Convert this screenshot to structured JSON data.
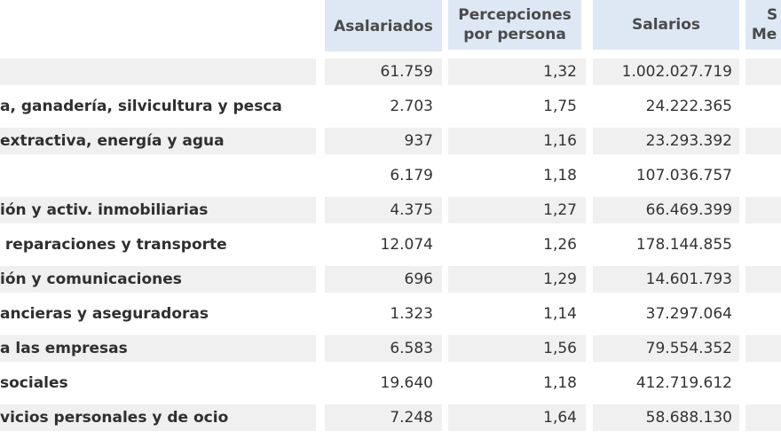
{
  "headers": {
    "asalariados": "Asalariados",
    "percepciones_line1": "Percepciones",
    "percepciones_line2": "por persona",
    "salarios": "Salarios",
    "medio_line1": "S",
    "medio_line2": "Me"
  },
  "rows": [
    {
      "label": "",
      "asalariados": "61.759",
      "percepciones": "1,32",
      "salarios": "1.002.027.719"
    },
    {
      "label": "a, ganadería, silvicultura y pesca",
      "asalariados": "2.703",
      "percepciones": "1,75",
      "salarios": "24.222.365"
    },
    {
      "label": "extractiva, energía y agua",
      "asalariados": "937",
      "percepciones": "1,16",
      "salarios": "23.293.392"
    },
    {
      "label": "",
      "asalariados": "6.179",
      "percepciones": "1,18",
      "salarios": "107.036.757"
    },
    {
      "label": "ión y activ. inmobiliarias",
      "asalariados": "4.375",
      "percepciones": "1,27",
      "salarios": "66.469.399"
    },
    {
      "label": " reparaciones y transporte",
      "asalariados": "12.074",
      "percepciones": "1,26",
      "salarios": "178.144.855"
    },
    {
      "label": "ión y comunicaciones",
      "asalariados": "696",
      "percepciones": "1,29",
      "salarios": "14.601.793"
    },
    {
      "label": "ancieras y aseguradoras",
      "asalariados": "1.323",
      "percepciones": "1,14",
      "salarios": "37.297.064"
    },
    {
      "label": "a las empresas",
      "asalariados": "6.583",
      "percepciones": "1,56",
      "salarios": "79.554.352"
    },
    {
      "label": "sociales",
      "asalariados": "19.640",
      "percepciones": "1,18",
      "salarios": "412.719.612"
    },
    {
      "label": "vicios personales y de ocio",
      "asalariados": "7.248",
      "percepciones": "1,64",
      "salarios": "58.688.130"
    }
  ],
  "colors": {
    "header_bg": "#dde8f4",
    "row_shade": "#f0f0f0"
  }
}
